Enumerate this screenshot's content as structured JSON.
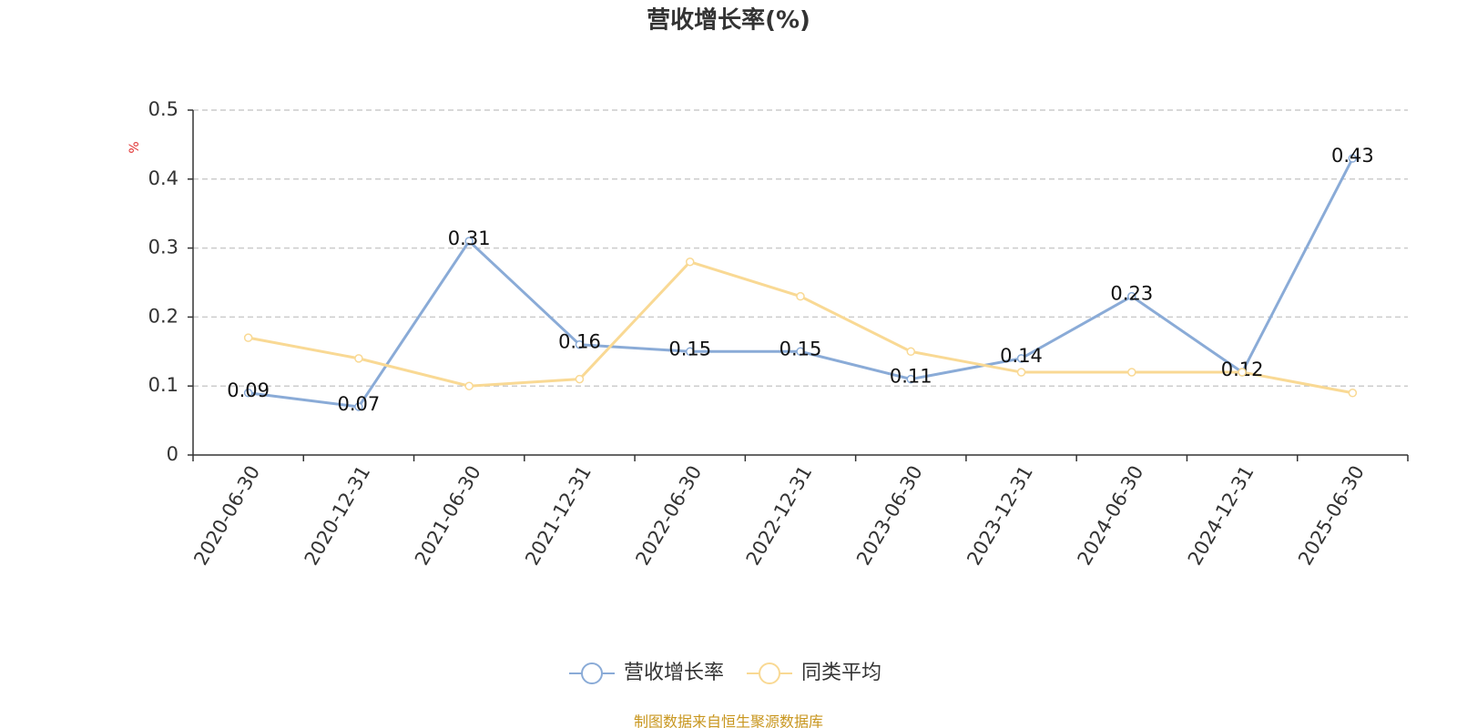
{
  "chart_data": {
    "type": "line",
    "title": "营收增长率(%)",
    "y_label": "%",
    "categories": [
      "2020-06-30",
      "2020-12-31",
      "2021-06-30",
      "2021-12-31",
      "2022-06-30",
      "2022-12-31",
      "2023-06-30",
      "2023-12-31",
      "2024-06-30",
      "2024-12-31",
      "2025-06-30"
    ],
    "series": [
      {
        "name": "营收增长率",
        "color": "#8aabd7",
        "data_labels": true,
        "values": [
          0.09,
          0.07,
          0.31,
          0.16,
          0.15,
          0.15,
          0.11,
          0.14,
          0.23,
          0.12,
          0.43
        ]
      },
      {
        "name": "同类平均",
        "color": "#f9d994",
        "data_labels": false,
        "values": [
          0.17,
          0.14,
          0.1,
          0.11,
          0.28,
          0.23,
          0.15,
          0.12,
          0.12,
          0.12,
          0.09
        ]
      }
    ],
    "ylim": [
      0,
      0.5
    ],
    "yticks": [
      0,
      0.1,
      0.2,
      0.3,
      0.4,
      0.5
    ],
    "grid": true,
    "source": "制图数据来自恒生聚源数据库"
  }
}
